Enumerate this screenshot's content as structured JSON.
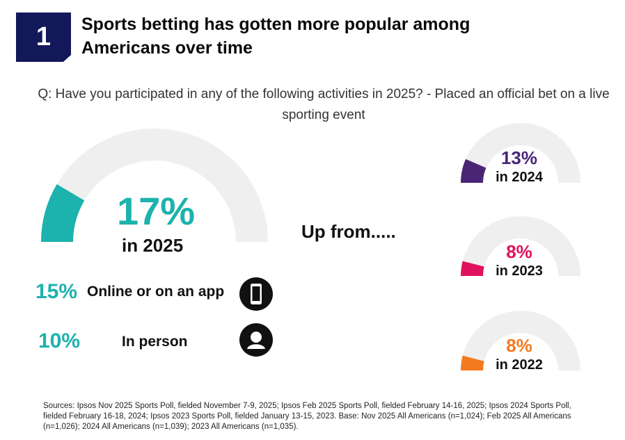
{
  "badge": {
    "number": "1"
  },
  "title": "Sports betting has gotten more popular among Americans over time",
  "question": "Q: Have you participated in any of the following activities in 2025? - Placed an official bet on a live sporting event",
  "main": {
    "value": "17%",
    "year": "in 2025"
  },
  "up_from": "Up from.....",
  "breakdown": [
    {
      "value": "15%",
      "label": "Online or on an app",
      "icon": "phone-icon"
    },
    {
      "value": "10%",
      "label": "In person",
      "icon": "person-icon"
    }
  ],
  "previous": [
    {
      "value": "13%",
      "year": "in 2024"
    },
    {
      "value": "8%",
      "year": "in 2023"
    },
    {
      "value": "8%",
      "year": "in 2022"
    }
  ],
  "colors": {
    "badge": "#13185a",
    "track": "#efefef",
    "y2025": "#1cb2ad",
    "y2024": "#4a2576",
    "y2023": "#e0115f",
    "y2022": "#f47a20"
  },
  "chart_data": {
    "type": "gauge",
    "scale": [
      0,
      100
    ],
    "series": [
      {
        "label": "in 2025",
        "value": 17,
        "color": "#1cb2ad"
      },
      {
        "label": "in 2024",
        "value": 13,
        "color": "#4a2576"
      },
      {
        "label": "in 2023",
        "value": 8,
        "color": "#e0115f"
      },
      {
        "label": "in 2022",
        "value": 8,
        "color": "#f47a20"
      }
    ],
    "breakdown_2025": [
      {
        "label": "Online or on an app",
        "value": 15
      },
      {
        "label": "In person",
        "value": 10
      }
    ]
  },
  "sources": "Sources: Ipsos Nov 2025 Sports Poll, fielded November 7-9, 2025; Ipsos Feb 2025 Sports Poll, fielded February 14-16, 2025; Ipsos 2024 Sports Poll, fielded February 16-18, 2024; Ipsos 2023 Sports Poll, fielded January 13-15, 2023. Base: Nov 2025 All Americans (n=1,024); Feb 2025 All Americans (n=1,026); 2024 All Americans (n=1,039); 2023 All Americans (n=1,035)."
}
